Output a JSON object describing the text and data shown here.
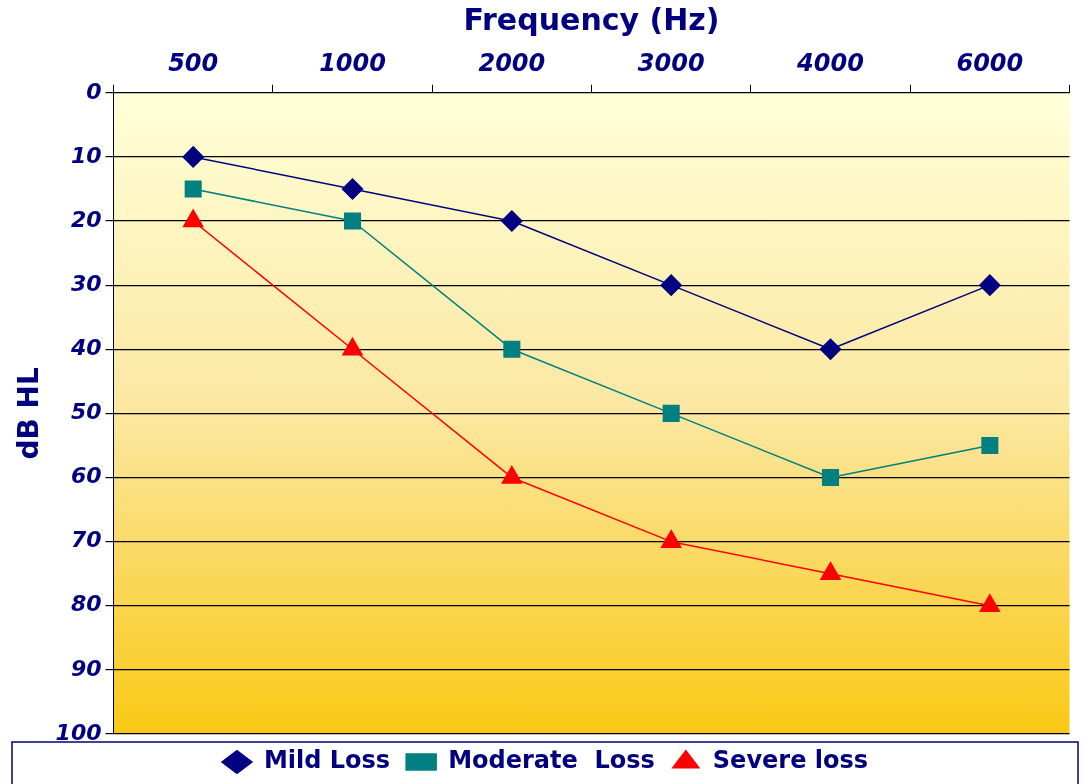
{
  "chart_data": {
    "type": "line",
    "xlabel": "Frequency (Hz)",
    "ylabel": "dB HL",
    "categories": [
      "500",
      "1000",
      "2000",
      "3000",
      "4000",
      "6000"
    ],
    "ylim": [
      100,
      0
    ],
    "yticks": [
      0,
      10,
      20,
      30,
      40,
      50,
      60,
      70,
      80,
      90,
      100
    ],
    "grid": "y",
    "legend": "bottom",
    "series": [
      {
        "name": "Mild Loss",
        "color": "#000080",
        "marker": "diamond",
        "values": [
          10,
          15,
          20,
          30,
          40,
          30
        ]
      },
      {
        "name": "Moderate  Loss",
        "color": "#008080",
        "marker": "square",
        "values": [
          15,
          20,
          40,
          50,
          60,
          55
        ]
      },
      {
        "name": "Severe loss",
        "color": "#ff0000",
        "marker": "triangle",
        "values": [
          20,
          40,
          60,
          70,
          75,
          80
        ]
      }
    ]
  }
}
